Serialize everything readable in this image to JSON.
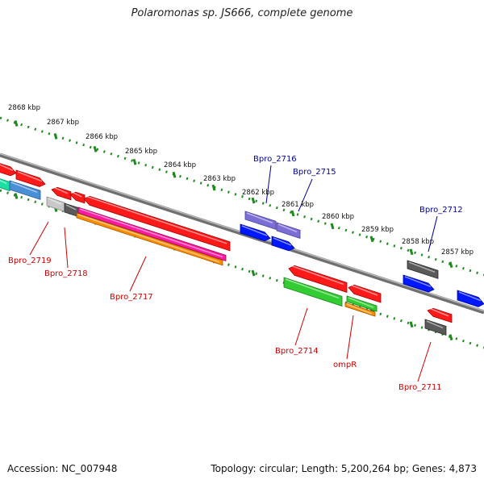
{
  "title": "Polaromonas sp. JS666, complete genome",
  "footer": {
    "accession": "Accession: NC_007948",
    "summary": "Topology: circular; Length: 5,200,264 bp; Genes: 4,873"
  },
  "ruler": {
    "tick_labels": [
      "2868 kbp",
      "2867 kbp",
      "2866 kbp",
      "2865 kbp",
      "2864 kbp",
      "2863 kbp",
      "2862 kbp",
      "2861 kbp",
      "2860 kbp",
      "2859 kbp",
      "2858 kbp",
      "2857 kbp"
    ]
  },
  "colors": {
    "forward_label": "#000099",
    "reverse_label": "#cc0000",
    "ruler": "#1e8a1e",
    "backbone": "#808080"
  },
  "gene_labels": [
    {
      "text": "Bpro_2716",
      "strand": "forward"
    },
    {
      "text": "Bpro_2715",
      "strand": "forward"
    },
    {
      "text": "Bpro_2712",
      "strand": "forward"
    },
    {
      "text": "Bpro_2719",
      "strand": "reverse"
    },
    {
      "text": "Bpro_2718",
      "strand": "reverse"
    },
    {
      "text": "Bpro_2717",
      "strand": "reverse"
    },
    {
      "text": "Bpro_2714",
      "strand": "reverse"
    },
    {
      "text": "ompR",
      "strand": "reverse"
    },
    {
      "text": "Bpro_2711",
      "strand": "reverse"
    }
  ]
}
